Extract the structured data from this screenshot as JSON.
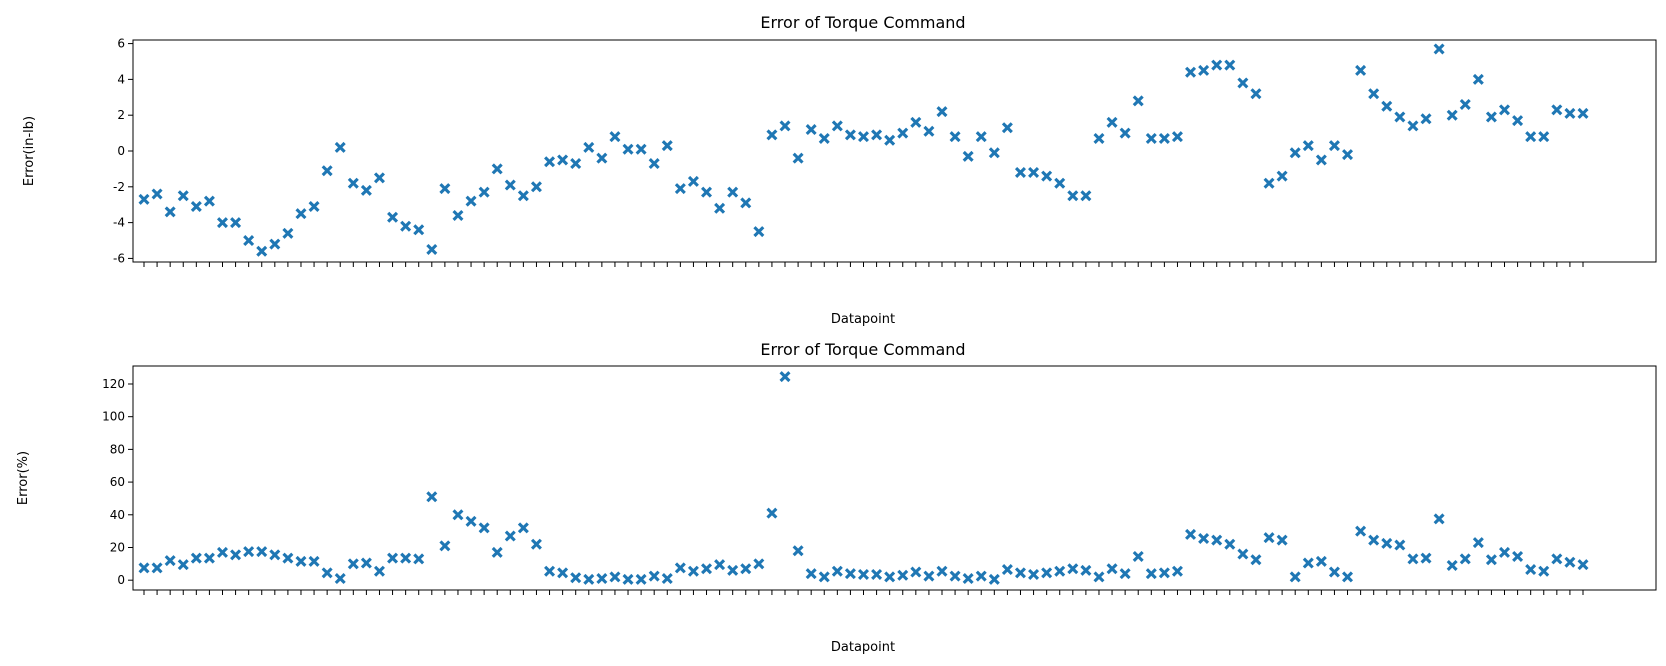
{
  "chart_data": [
    {
      "type": "scatter",
      "title": "Error of Torque Command",
      "xlabel": "Datapoint",
      "ylabel": "Error(in-lb)",
      "ylim": [
        -6.2,
        6.2
      ],
      "yticks": [
        -6,
        -4,
        -2,
        0,
        2,
        4,
        6
      ],
      "legend": "none",
      "marker_color": "#1f77b4",
      "marker": "X",
      "series": [
        {
          "values": [
            -2.7,
            -2.4,
            -3.4,
            -2.5,
            -3.1,
            -2.8,
            -4.0,
            -4.0,
            -5.0,
            -5.6,
            -5.2,
            -4.6,
            -3.5,
            -3.1,
            -1.1,
            0.2,
            -1.8,
            -2.2,
            -1.5,
            -3.7,
            -4.2,
            -4.4,
            -5.5,
            -2.1,
            -3.6,
            -2.8,
            -2.3,
            -1.0,
            -1.9,
            -2.5,
            -2.0,
            -0.6,
            -0.5,
            -0.7,
            0.2,
            -0.4,
            0.8,
            0.1,
            0.1,
            -0.7,
            0.3,
            -2.1,
            -1.7,
            -2.3,
            -3.2,
            -2.3,
            -2.9,
            -4.5,
            0.9,
            1.4,
            -0.4,
            1.2,
            0.7,
            1.4,
            0.9,
            0.8,
            0.9,
            0.6,
            1.0,
            1.6,
            1.1,
            2.2,
            0.8,
            -0.3,
            0.8,
            -0.1,
            1.3,
            -1.2,
            -1.2,
            -1.4,
            -1.8,
            -2.5,
            -2.5,
            0.7,
            1.6,
            1.0,
            2.8,
            0.7,
            0.7,
            0.8,
            4.4,
            4.5,
            4.8,
            4.8,
            3.8,
            3.2,
            -1.8,
            -1.4,
            -0.1,
            0.3,
            -0.5,
            0.3,
            -0.2,
            4.5,
            3.2,
            2.5,
            1.9,
            1.4,
            1.8,
            5.7,
            2.0,
            2.6,
            4.0,
            1.9,
            2.3,
            1.7,
            0.8,
            0.8,
            2.3,
            2.1,
            2.1
          ]
        }
      ]
    },
    {
      "type": "scatter",
      "title": "Error of Torque Command",
      "xlabel": "Datapoint",
      "ylabel": "Error(%)",
      "ylim": [
        -6,
        131
      ],
      "yticks": [
        0,
        20,
        40,
        60,
        80,
        100,
        120
      ],
      "legend": "none",
      "marker_color": "#1f77b4",
      "marker": "X",
      "series": [
        {
          "values": [
            7.5,
            7.5,
            12.0,
            9.5,
            13.5,
            13.5,
            17.0,
            15.5,
            17.5,
            17.5,
            15.5,
            13.5,
            11.5,
            11.5,
            4.5,
            1.0,
            10.0,
            10.5,
            5.5,
            13.5,
            13.5,
            13.0,
            51.0,
            21.0,
            40.0,
            36.0,
            32.0,
            17.0,
            27.0,
            32.0,
            22.0,
            5.5,
            4.5,
            1.5,
            0.5,
            1.0,
            2.0,
            0.5,
            0.5,
            2.5,
            1.0,
            7.5,
            5.5,
            7.0,
            9.5,
            6.0,
            7.0,
            10.0,
            41.0,
            124.5,
            18.0,
            4.0,
            2.0,
            5.5,
            4.0,
            3.5,
            3.5,
            2.0,
            3.0,
            5.0,
            2.5,
            5.5,
            2.5,
            1.0,
            2.5,
            0.5,
            6.5,
            4.5,
            3.5,
            4.5,
            5.5,
            7.0,
            6.0,
            2.0,
            7.0,
            4.0,
            14.5,
            4.0,
            4.5,
            5.5,
            28.0,
            25.5,
            24.5,
            22.0,
            16.0,
            12.5,
            26.0,
            24.5,
            2.0,
            10.5,
            11.5,
            5.0,
            2.0,
            30.0,
            24.5,
            22.5,
            21.5,
            13.0,
            13.5,
            37.5,
            9.0,
            13.0,
            23.0,
            12.5,
            17.0,
            14.5,
            6.5,
            5.5,
            13.0,
            11.0,
            9.5
          ]
        }
      ]
    }
  ]
}
